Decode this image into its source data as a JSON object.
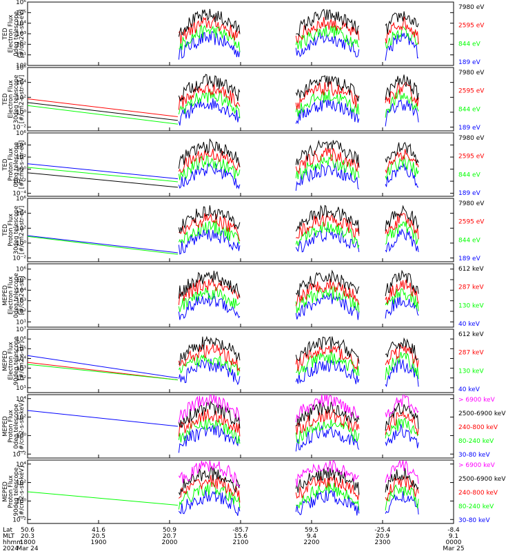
{
  "colors": {
    "black": "#000000",
    "red": "#ff0000",
    "green": "#00ff00",
    "blue": "#0000ff",
    "magenta": "#ff00ff"
  },
  "chart_data": [
    {
      "type": "line",
      "ylabel_lines": [
        "TED",
        "Electron Flux",
        "0deg telescope",
        "[#/cm2-s-str-eV]"
      ],
      "yscale": "log",
      "yticks": [
        "10⁰",
        "10¹",
        "10²",
        "10³",
        "10⁴",
        "10⁵",
        "10⁶"
      ],
      "ylim": [
        0,
        6
      ],
      "series": [
        {
          "name": "7980 eV",
          "color": "#000000"
        },
        {
          "name": "2595 eV",
          "color": "#ff0000"
        },
        {
          "name": "844 eV",
          "color": "#00ff00"
        },
        {
          "name": "189 eV",
          "color": "#0000ff"
        }
      ],
      "start_lines": []
    },
    {
      "type": "line",
      "ylabel_lines": [
        "TED",
        "Electron Flux",
        "30deg telescope",
        "[#/cm2-s-str-eV]"
      ],
      "yscale": "log",
      "yticks": [
        "10⁻²",
        "10⁰",
        "10²",
        "10⁴",
        "10⁶"
      ],
      "ylim": [
        -2.5,
        6
      ],
      "series": [
        {
          "name": "7980 eV",
          "color": "#000000"
        },
        {
          "name": "2595 eV",
          "color": "#ff0000"
        },
        {
          "name": "844 eV",
          "color": "#00ff00"
        },
        {
          "name": "189 eV",
          "color": "#0000ff"
        }
      ],
      "start_lines": [
        {
          "color": "#ff0000",
          "from": 1.8,
          "to": -0.6
        },
        {
          "color": "#00ff00",
          "from": 0.9,
          "to": -1.6
        },
        {
          "color": "#000000",
          "from": 1.3,
          "to": -1.1
        }
      ]
    },
    {
      "type": "line",
      "ylabel_lines": [
        "TED",
        "Proton Flux",
        "0deg telescope",
        "[#/cm2-s-str-eV]"
      ],
      "yscale": "log",
      "yticks": [
        "10⁻⁴",
        "10⁻²",
        "10⁰",
        "10²",
        "10⁴",
        "10⁶"
      ],
      "ylim": [
        -4.5,
        6
      ],
      "series": [
        {
          "name": "7980 eV",
          "color": "#000000"
        },
        {
          "name": "2595 eV",
          "color": "#ff0000"
        },
        {
          "name": "844 eV",
          "color": "#00ff00"
        },
        {
          "name": "189 eV",
          "color": "#0000ff"
        }
      ],
      "start_lines": [
        {
          "color": "#0000ff",
          "from": 0.9,
          "to": -1.6
        },
        {
          "color": "#00ff00",
          "from": 0.3,
          "to": -2.1
        },
        {
          "color": "#000000",
          "from": -0.6,
          "to": -3.0
        }
      ]
    },
    {
      "type": "line",
      "ylabel_lines": [
        "TED",
        "Proton Flux",
        "30deg telescope",
        "[#/cm2-s-str-eV]"
      ],
      "yscale": "log",
      "yticks": [
        "10⁻²",
        "10⁰",
        "10²",
        "10⁴",
        "10⁶"
      ],
      "ylim": [
        -2.5,
        6
      ],
      "series": [
        {
          "name": "7980 eV",
          "color": "#000000"
        },
        {
          "name": "2595 eV",
          "color": "#ff0000"
        },
        {
          "name": "844 eV",
          "color": "#00ff00"
        },
        {
          "name": "189 eV",
          "color": "#0000ff"
        }
      ],
      "start_lines": [
        {
          "color": "#0000ff",
          "from": 1.0,
          "to": -1.3
        },
        {
          "color": "#00ff00",
          "from": 0.9,
          "to": -1.5
        }
      ]
    },
    {
      "type": "line",
      "ylabel_lines": [
        "MEPED",
        "Electron Flux",
        "0deg telescope",
        "[#/cm2-s-str]"
      ],
      "yscale": "log",
      "yticks": [
        "10¹",
        "10²",
        "10³",
        "10⁴",
        "10⁵",
        "10⁶"
      ],
      "ylim": [
        0.5,
        6.5
      ],
      "series": [
        {
          "name": "612 keV",
          "color": "#000000"
        },
        {
          "name": "287 keV",
          "color": "#ff0000"
        },
        {
          "name": "130 keV",
          "color": "#00ff00"
        },
        {
          "name": "40 keV",
          "color": "#0000ff"
        }
      ],
      "start_lines": []
    },
    {
      "type": "line",
      "ylabel_lines": [
        "MEPED",
        "Electron Flux",
        "90deg telescope",
        "[#/cm2-s-str]"
      ],
      "yscale": "log",
      "yticks": [
        "10¹",
        "10²",
        "10³",
        "10⁴",
        "10⁵",
        "10⁶",
        "10⁷"
      ],
      "ylim": [
        0.5,
        7
      ],
      "series": [
        {
          "name": "612 keV",
          "color": "#000000"
        },
        {
          "name": "287 keV",
          "color": "#ff0000"
        },
        {
          "name": "130 keV",
          "color": "#00ff00"
        },
        {
          "name": "40 keV",
          "color": "#0000ff"
        }
      ],
      "start_lines": [
        {
          "color": "#0000ff",
          "from": 4.3,
          "to": 2.0
        },
        {
          "color": "#ff0000",
          "from": 3.6,
          "to": 1.8
        },
        {
          "color": "#00ff00",
          "from": 3.4,
          "to": 1.8
        }
      ]
    },
    {
      "type": "line",
      "ylabel_lines": [
        "MEPED",
        "Proton Flux",
        "0deg telescope",
        "[#/cm2-s-str-keV]"
      ],
      "yscale": "log",
      "yticks": [
        "10⁻²",
        "10⁰",
        "10²",
        "10⁴"
      ],
      "ylim": [
        -2.5,
        5.5
      ],
      "series": [
        {
          "name": "> 6900 keV",
          "color": "#ff00ff"
        },
        {
          "name": "2500-6900 keV",
          "color": "#000000"
        },
        {
          "name": "240-800 keV",
          "color": "#ff0000"
        },
        {
          "name": "80-240 keV",
          "color": "#00ff00"
        },
        {
          "name": "30-80 keV",
          "color": "#0000ff"
        }
      ],
      "start_lines": [
        {
          "color": "#0000ff",
          "from": 3.5,
          "to": 1.5
        }
      ]
    },
    {
      "type": "line",
      "ylabel_lines": [
        "MEPED",
        "Proton Flux",
        "90deg telescope",
        "[#/cm2-s-str-keV]"
      ],
      "yscale": "log",
      "yticks": [
        "10⁻²",
        "10⁰",
        "10²",
        "10⁴"
      ],
      "ylim": [
        -2.5,
        5.5
      ],
      "series": [
        {
          "name": "> 6900 keV",
          "color": "#ff00ff"
        },
        {
          "name": "2500-6900 keV",
          "color": "#000000"
        },
        {
          "name": "240-800 keV",
          "color": "#ff0000"
        },
        {
          "name": "80-240 keV",
          "color": "#00ff00"
        },
        {
          "name": "30-80 keV",
          "color": "#0000ff"
        }
      ],
      "start_lines": [
        {
          "color": "#00ff00",
          "from": 1.5,
          "to": -0.2
        }
      ]
    }
  ],
  "x_axis": {
    "row_labels": [
      "Lat",
      "MLT",
      "hhmm",
      "2024"
    ],
    "columns": [
      {
        "lat": "50.6",
        "mlt": "20.3",
        "hhmm": "1800",
        "date": "Mar 24"
      },
      {
        "lat": "41.6",
        "mlt": "20.5",
        "hhmm": "1900",
        "date": ""
      },
      {
        "lat": "50.9",
        "mlt": "20.7",
        "hhmm": "2000",
        "date": ""
      },
      {
        "lat": "-85.7",
        "mlt": "15.6",
        "hhmm": "2100",
        "date": ""
      },
      {
        "lat": "59.5",
        "mlt": "9.4",
        "hhmm": "2200",
        "date": ""
      },
      {
        "lat": "-25.4",
        "mlt": "20.9",
        "hhmm": "2300",
        "date": ""
      },
      {
        "lat": "-8.4",
        "mlt": "9.1",
        "hhmm": "0000",
        "date": "Mar 25"
      }
    ]
  }
}
